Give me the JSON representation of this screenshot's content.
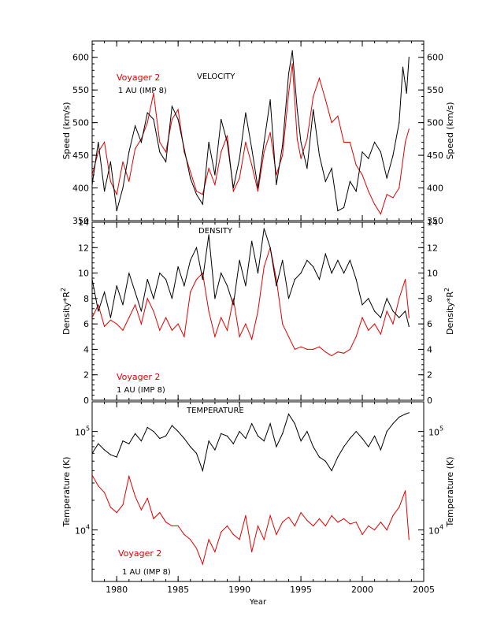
{
  "colors": {
    "voyager": "#e00000",
    "imp8": "#000000",
    "axis": "#000000"
  },
  "x_axis": {
    "label": "Year",
    "range": [
      1978,
      2005
    ],
    "ticks": [
      1980,
      1985,
      1990,
      1995,
      2000,
      2005
    ]
  },
  "chart_data": [
    {
      "type": "line",
      "title": "VELOCITY",
      "ylabel": "Speed (km/s)",
      "xlabel": "",
      "xlim": [
        1978,
        2005
      ],
      "ylim": [
        350,
        625
      ],
      "yticks": [
        350,
        400,
        450,
        500,
        550,
        600
      ],
      "legend": [
        "Voyager 2",
        "1 AU (IMP 8)"
      ],
      "legend_position": "top-left",
      "series": [
        {
          "name": "Voyager 2",
          "color": "#e00000",
          "x": [
            1978.0,
            1978.5,
            1979.0,
            1979.5,
            1980.0,
            1980.5,
            1981.0,
            1981.5,
            1982.0,
            1982.5,
            1983.0,
            1983.5,
            1984.0,
            1984.5,
            1985.0,
            1985.5,
            1986.0,
            1986.5,
            1987.0,
            1987.5,
            1988.0,
            1988.5,
            1989.0,
            1989.5,
            1990.0,
            1990.5,
            1991.0,
            1991.5,
            1992.0,
            1992.5,
            1993.0,
            1993.5,
            1994.0,
            1994.3,
            1994.7,
            1995.0,
            1995.5,
            1996.0,
            1996.5,
            1997.0,
            1997.5,
            1998.0,
            1998.5,
            1999.0,
            1999.5,
            2000.0,
            2000.5,
            2001.0,
            2001.5,
            2002.0,
            2002.5,
            2003.0,
            2003.5,
            2003.8
          ],
          "y": [
            420,
            455,
            470,
            410,
            390,
            440,
            410,
            460,
            475,
            500,
            545,
            470,
            455,
            505,
            520,
            455,
            425,
            395,
            390,
            430,
            405,
            455,
            480,
            395,
            415,
            470,
            435,
            395,
            455,
            485,
            420,
            450,
            545,
            590,
            475,
            445,
            475,
            540,
            568,
            535,
            500,
            510,
            470,
            470,
            435,
            420,
            395,
            375,
            360,
            390,
            385,
            400,
            470,
            490
          ]
        },
        {
          "name": "1 AU (IMP 8)",
          "color": "#000000",
          "x": [
            1978.0,
            1978.5,
            1979.0,
            1979.5,
            1980.0,
            1980.5,
            1981.0,
            1981.5,
            1982.0,
            1982.5,
            1983.0,
            1983.5,
            1984.0,
            1984.5,
            1985.0,
            1985.5,
            1986.0,
            1986.5,
            1987.0,
            1987.5,
            1988.0,
            1988.5,
            1989.0,
            1989.5,
            1990.0,
            1990.5,
            1991.0,
            1991.5,
            1992.0,
            1992.5,
            1993.0,
            1993.5,
            1994.0,
            1994.3,
            1994.7,
            1995.0,
            1995.5,
            1996.0,
            1996.5,
            1997.0,
            1997.5,
            1998.0,
            1998.5,
            1999.0,
            1999.5,
            2000.0,
            2000.5,
            2001.0,
            2001.5,
            2002.0,
            2002.5,
            2003.0,
            2003.3,
            2003.6,
            2003.8
          ],
          "y": [
            405,
            470,
            395,
            440,
            365,
            400,
            455,
            495,
            470,
            515,
            505,
            455,
            440,
            525,
            505,
            460,
            415,
            390,
            375,
            470,
            420,
            505,
            470,
            400,
            445,
            515,
            460,
            400,
            470,
            535,
            405,
            465,
            575,
            610,
            520,
            470,
            430,
            520,
            450,
            410,
            430,
            365,
            370,
            410,
            395,
            455,
            445,
            470,
            455,
            415,
            450,
            500,
            585,
            545,
            600
          ]
        }
      ]
    },
    {
      "type": "line",
      "title": "DENSITY",
      "ylabel": "Density*R",
      "ylabel_sup": "2",
      "xlabel": "",
      "xlim": [
        1978,
        2005
      ],
      "ylim": [
        0,
        14
      ],
      "yticks": [
        0,
        2,
        4,
        6,
        8,
        10,
        12,
        14
      ],
      "legend": [
        "Voyager 2",
        "1 AU (IMP 8)"
      ],
      "legend_position": "bottom-left",
      "series": [
        {
          "name": "Voyager 2",
          "color": "#e00000",
          "x": [
            1978.0,
            1978.5,
            1979.0,
            1979.5,
            1980.0,
            1980.5,
            1981.0,
            1981.5,
            1982.0,
            1982.5,
            1983.0,
            1983.5,
            1984.0,
            1984.5,
            1985.0,
            1985.5,
            1986.0,
            1986.5,
            1987.0,
            1987.5,
            1988.0,
            1988.5,
            1989.0,
            1989.5,
            1990.0,
            1990.5,
            1991.0,
            1991.5,
            1992.0,
            1992.5,
            1993.0,
            1993.5,
            1994.0,
            1994.5,
            1995.0,
            1995.5,
            1996.0,
            1996.5,
            1997.0,
            1997.5,
            1998.0,
            1998.5,
            1999.0,
            1999.5,
            2000.0,
            2000.5,
            2001.0,
            2001.5,
            2002.0,
            2002.5,
            2003.0,
            2003.5,
            2003.8
          ],
          "y": [
            6.5,
            7.5,
            5.8,
            6.3,
            6.0,
            5.5,
            6.5,
            7.5,
            6.0,
            8.0,
            7.0,
            5.5,
            6.5,
            5.5,
            6.0,
            5.0,
            8.5,
            9.5,
            10.0,
            7.0,
            5.0,
            6.5,
            5.5,
            8.0,
            5.0,
            6.0,
            4.8,
            7.0,
            10.5,
            12.0,
            9.5,
            6.0,
            5.0,
            4.0,
            4.2,
            4.0,
            4.0,
            4.2,
            3.8,
            3.5,
            3.8,
            3.7,
            4.0,
            5.0,
            6.5,
            5.5,
            6.0,
            5.2,
            7.0,
            6.0,
            8.0,
            9.5,
            6.5
          ]
        },
        {
          "name": "1 AU (IMP 8)",
          "color": "#000000",
          "x": [
            1978.0,
            1978.5,
            1979.0,
            1979.5,
            1980.0,
            1980.5,
            1981.0,
            1981.5,
            1982.0,
            1982.5,
            1983.0,
            1983.5,
            1984.0,
            1984.5,
            1985.0,
            1985.5,
            1986.0,
            1986.5,
            1987.0,
            1987.5,
            1988.0,
            1988.5,
            1989.0,
            1989.5,
            1990.0,
            1990.5,
            1991.0,
            1991.5,
            1992.0,
            1992.5,
            1993.0,
            1993.5,
            1994.0,
            1994.5,
            1995.0,
            1995.5,
            1996.0,
            1996.5,
            1997.0,
            1997.5,
            1998.0,
            1998.5,
            1999.0,
            1999.5,
            2000.0,
            2000.5,
            2001.0,
            2001.5,
            2002.0,
            2002.5,
            2003.0,
            2003.5,
            2003.8
          ],
          "y": [
            9.5,
            7.0,
            8.5,
            6.5,
            9.0,
            7.5,
            10.0,
            8.5,
            7.0,
            9.5,
            8.0,
            10.0,
            9.5,
            8.0,
            10.5,
            9.0,
            11.0,
            12.0,
            9.5,
            13.0,
            8.0,
            10.0,
            9.0,
            7.5,
            11.0,
            9.0,
            12.5,
            10.0,
            13.5,
            12.0,
            9.0,
            11.0,
            8.0,
            9.5,
            10.0,
            11.0,
            10.5,
            9.5,
            11.5,
            10.0,
            11.0,
            10.0,
            11.0,
            9.5,
            7.5,
            8.0,
            7.0,
            6.5,
            8.0,
            7.0,
            6.5,
            7.0,
            5.8
          ]
        }
      ]
    },
    {
      "type": "line",
      "title": "TEMPERATURE",
      "ylabel": "Temperature (K)",
      "xlabel": "Year",
      "xlim": [
        1978,
        2005
      ],
      "ylim": [
        3000,
        200000
      ],
      "yscale": "log",
      "yticks": [
        {
          "value": 10000,
          "base": "10",
          "exp": "4"
        },
        {
          "value": 100000,
          "base": "10",
          "exp": "5"
        }
      ],
      "legend": [
        "Voyager 2",
        "1 AU (IMP 8)"
      ],
      "legend_position": "bottom-left",
      "series": [
        {
          "name": "Voyager 2",
          "color": "#e00000",
          "x": [
            1978.0,
            1978.5,
            1979.0,
            1979.5,
            1980.0,
            1980.5,
            1981.0,
            1981.5,
            1982.0,
            1982.5,
            1983.0,
            1983.5,
            1984.0,
            1984.5,
            1985.0,
            1985.5,
            1986.0,
            1986.5,
            1987.0,
            1987.5,
            1988.0,
            1988.5,
            1989.0,
            1989.5,
            1990.0,
            1990.5,
            1991.0,
            1991.5,
            1992.0,
            1992.5,
            1993.0,
            1993.5,
            1994.0,
            1994.5,
            1995.0,
            1995.5,
            1996.0,
            1996.5,
            1997.0,
            1997.5,
            1998.0,
            1998.5,
            1999.0,
            1999.5,
            2000.0,
            2000.5,
            2001.0,
            2001.5,
            2002.0,
            2002.5,
            2003.0,
            2003.5,
            2003.8
          ],
          "y": [
            36000,
            28000,
            24000,
            17000,
            15000,
            18000,
            35000,
            22000,
            16000,
            21000,
            13000,
            15000,
            12000,
            11000,
            11000,
            9000,
            8000,
            6500,
            4500,
            8000,
            6000,
            9500,
            11000,
            9000,
            8000,
            14000,
            6000,
            11000,
            8000,
            14000,
            9000,
            12000,
            13500,
            11000,
            15000,
            12500,
            11000,
            13000,
            11000,
            14000,
            12000,
            13000,
            11500,
            12000,
            9000,
            11000,
            10000,
            12000,
            10000,
            14000,
            17000,
            25000,
            8000
          ]
        },
        {
          "name": "1 AU (IMP 8)",
          "color": "#000000",
          "x": [
            1978.0,
            1978.5,
            1979.0,
            1979.5,
            1980.0,
            1980.5,
            1981.0,
            1981.5,
            1982.0,
            1982.5,
            1983.0,
            1983.5,
            1984.0,
            1984.5,
            1985.0,
            1985.5,
            1986.0,
            1986.5,
            1987.0,
            1987.5,
            1988.0,
            1988.5,
            1989.0,
            1989.5,
            1990.0,
            1990.5,
            1991.0,
            1991.5,
            1992.0,
            1992.5,
            1993.0,
            1993.5,
            1994.0,
            1994.5,
            1995.0,
            1995.5,
            1996.0,
            1996.5,
            1997.0,
            1997.5,
            1998.0,
            1998.5,
            1999.0,
            1999.5,
            2000.0,
            2000.5,
            2001.0,
            2001.5,
            2002.0,
            2002.5,
            2003.0,
            2003.5,
            2003.8
          ],
          "y": [
            60000,
            75000,
            65000,
            58000,
            55000,
            80000,
            75000,
            95000,
            80000,
            110000,
            100000,
            85000,
            90000,
            115000,
            100000,
            85000,
            70000,
            60000,
            40000,
            80000,
            65000,
            95000,
            90000,
            75000,
            100000,
            85000,
            120000,
            90000,
            80000,
            120000,
            70000,
            95000,
            150000,
            120000,
            80000,
            100000,
            70000,
            55000,
            50000,
            40000,
            55000,
            70000,
            85000,
            100000,
            85000,
            70000,
            90000,
            65000,
            100000,
            120000,
            140000,
            150000,
            155000
          ]
        }
      ]
    }
  ]
}
